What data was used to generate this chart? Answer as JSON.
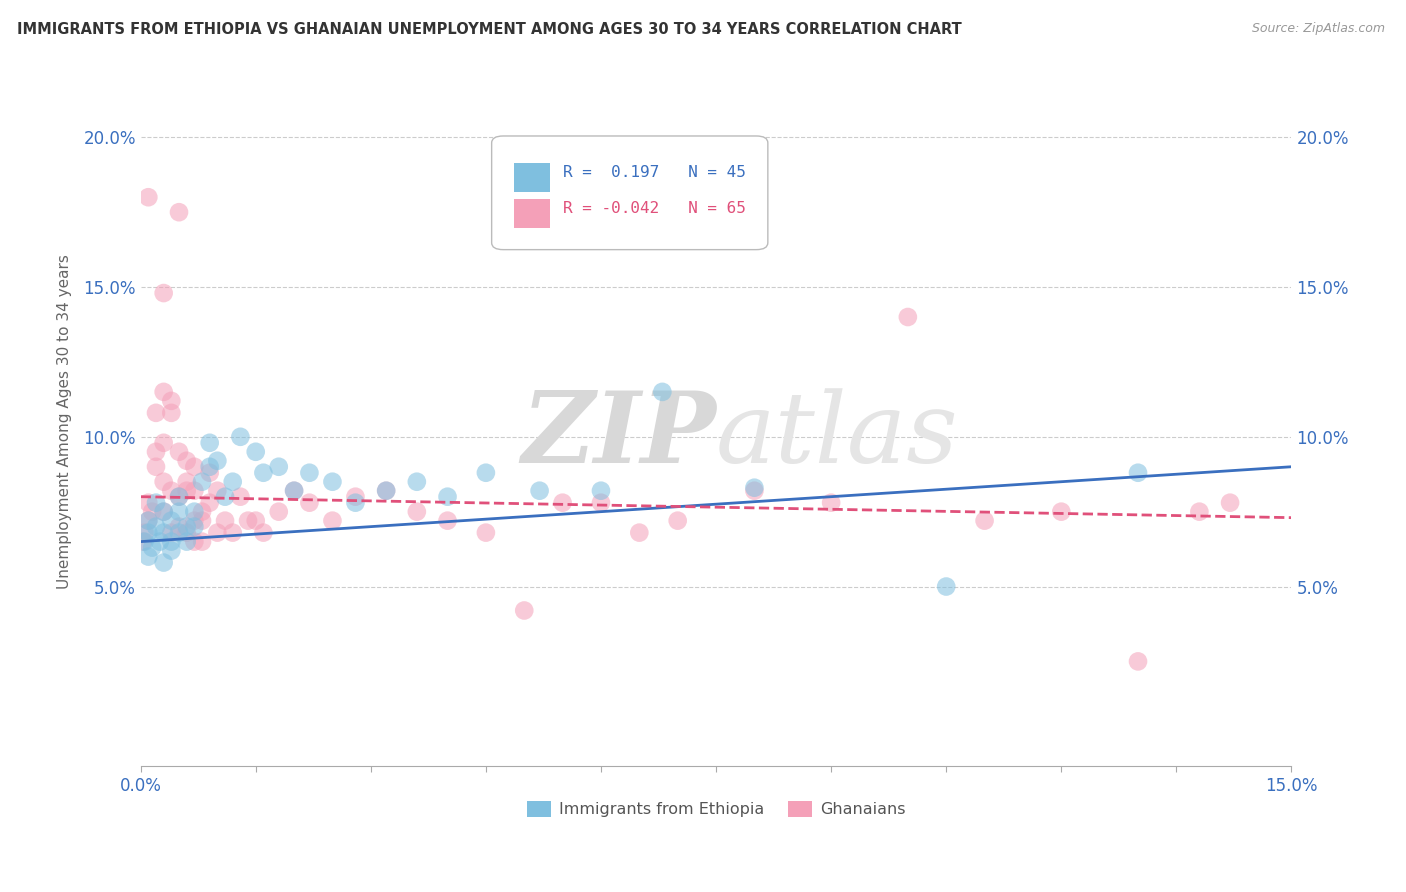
{
  "title": "IMMIGRANTS FROM ETHIOPIA VS GHANAIAN UNEMPLOYMENT AMONG AGES 30 TO 34 YEARS CORRELATION CHART",
  "source": "Source: ZipAtlas.com",
  "ylabel": "Unemployment Among Ages 30 to 34 years",
  "xlim": [
    0.0,
    0.15
  ],
  "ylim": [
    -0.01,
    0.22
  ],
  "xticks": [
    0.0,
    0.015,
    0.03,
    0.045,
    0.06,
    0.075,
    0.09,
    0.105,
    0.12,
    0.135,
    0.15
  ],
  "ytick_vals": [
    0.0,
    0.05,
    0.1,
    0.15,
    0.2
  ],
  "ytick_labels": [
    "",
    "5.0%",
    "10.0%",
    "15.0%",
    "20.0%"
  ],
  "blue_color": "#7fbfdf",
  "pink_color": "#f4a0b8",
  "blue_line_color": "#3a6fbf",
  "pink_line_color": "#e0507a",
  "watermark_zip": "ZIP",
  "watermark_atlas": "atlas",
  "blue_scatter_x": [
    0.0005,
    0.001,
    0.001,
    0.001,
    0.0015,
    0.002,
    0.002,
    0.0025,
    0.003,
    0.003,
    0.003,
    0.004,
    0.004,
    0.004,
    0.005,
    0.005,
    0.005,
    0.006,
    0.006,
    0.007,
    0.007,
    0.008,
    0.009,
    0.009,
    0.01,
    0.011,
    0.012,
    0.013,
    0.015,
    0.016,
    0.018,
    0.02,
    0.022,
    0.025,
    0.028,
    0.032,
    0.036,
    0.04,
    0.045,
    0.052,
    0.06,
    0.068,
    0.08,
    0.105,
    0.13
  ],
  "blue_scatter_y": [
    0.065,
    0.06,
    0.068,
    0.072,
    0.063,
    0.07,
    0.078,
    0.065,
    0.068,
    0.075,
    0.058,
    0.062,
    0.072,
    0.065,
    0.075,
    0.068,
    0.08,
    0.07,
    0.065,
    0.075,
    0.07,
    0.085,
    0.09,
    0.098,
    0.092,
    0.08,
    0.085,
    0.1,
    0.095,
    0.088,
    0.09,
    0.082,
    0.088,
    0.085,
    0.078,
    0.082,
    0.085,
    0.08,
    0.088,
    0.082,
    0.082,
    0.115,
    0.083,
    0.05,
    0.088
  ],
  "pink_scatter_x": [
    0.0003,
    0.0005,
    0.001,
    0.001,
    0.001,
    0.0015,
    0.002,
    0.002,
    0.002,
    0.003,
    0.003,
    0.003,
    0.003,
    0.004,
    0.004,
    0.004,
    0.005,
    0.005,
    0.005,
    0.005,
    0.006,
    0.006,
    0.006,
    0.007,
    0.007,
    0.007,
    0.008,
    0.008,
    0.009,
    0.009,
    0.01,
    0.01,
    0.011,
    0.012,
    0.013,
    0.014,
    0.015,
    0.016,
    0.018,
    0.02,
    0.022,
    0.025,
    0.028,
    0.032,
    0.036,
    0.04,
    0.045,
    0.05,
    0.055,
    0.06,
    0.065,
    0.07,
    0.08,
    0.09,
    0.1,
    0.11,
    0.12,
    0.13,
    0.138,
    0.142,
    0.003,
    0.004,
    0.006,
    0.007,
    0.008
  ],
  "pink_scatter_y": [
    0.065,
    0.068,
    0.072,
    0.078,
    0.18,
    0.075,
    0.09,
    0.095,
    0.108,
    0.075,
    0.085,
    0.115,
    0.148,
    0.068,
    0.082,
    0.108,
    0.07,
    0.08,
    0.095,
    0.175,
    0.068,
    0.085,
    0.092,
    0.072,
    0.082,
    0.09,
    0.065,
    0.075,
    0.078,
    0.088,
    0.068,
    0.082,
    0.072,
    0.068,
    0.08,
    0.072,
    0.072,
    0.068,
    0.075,
    0.082,
    0.078,
    0.072,
    0.08,
    0.082,
    0.075,
    0.072,
    0.068,
    0.042,
    0.078,
    0.078,
    0.068,
    0.072,
    0.082,
    0.078,
    0.14,
    0.072,
    0.075,
    0.025,
    0.075,
    0.078,
    0.098,
    0.112,
    0.082,
    0.065,
    0.072
  ],
  "blue_trend_x": [
    0.0,
    0.15
  ],
  "blue_trend_y": [
    0.065,
    0.09
  ],
  "pink_trend_x": [
    0.0,
    0.15
  ],
  "pink_trend_y": [
    0.08,
    0.073
  ]
}
